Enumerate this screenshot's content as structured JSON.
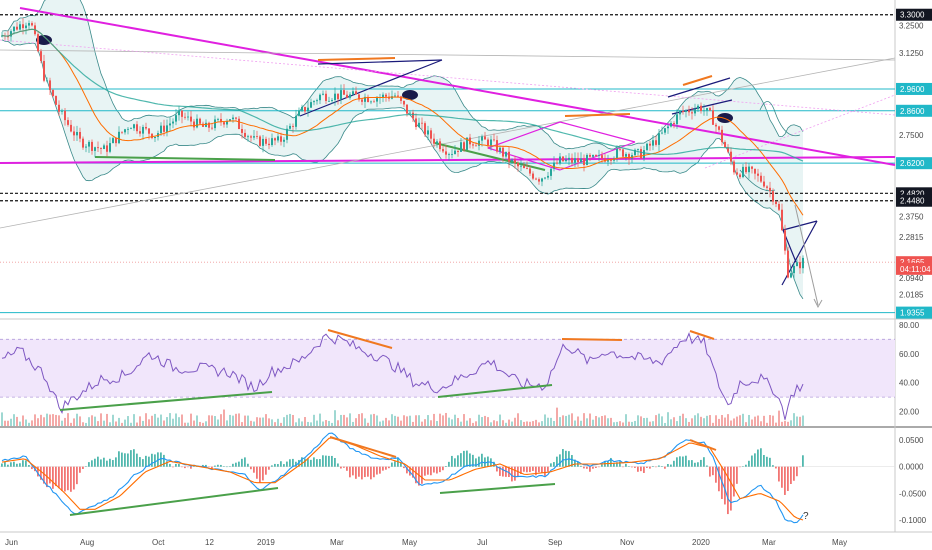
{
  "colors": {
    "up": "#26a69a",
    "down": "#ef5350",
    "magenta": "#e020e0",
    "cyan": "#20b8c8",
    "trend_navy": "#1a1a7a",
    "orange": "#f07820",
    "green": "#4aa04a",
    "rsi": "#7e57c2",
    "macd": "#2196f3",
    "signal": "#ff6d00",
    "band": "#e8f4f4",
    "rsi_band": "#f1e6fb"
  },
  "chart_data": [
    {
      "type": "candlestick",
      "panel": "price",
      "x_axis_labels": [
        "Jun",
        "Aug",
        "Oct",
        "12",
        "2019",
        "Mar",
        "May",
        "Jul",
        "Sep",
        "Nov",
        "2020",
        "Mar",
        "May"
      ],
      "y_axis_labels": [
        "3.2500",
        "3.1250",
        "2.7500",
        "2.3750",
        "2.2815",
        "2.0940",
        "2.0185"
      ],
      "ylim": [
        1.92,
        3.34
      ],
      "price_tags": [
        {
          "label": "3.3000",
          "value": 3.3,
          "style": "dark"
        },
        {
          "label": "2.9600",
          "value": 2.96,
          "style": "cyan"
        },
        {
          "label": "2.8600",
          "value": 2.86,
          "style": "cyan"
        },
        {
          "label": "2.6200",
          "value": 2.62,
          "style": "cyan"
        },
        {
          "label": "2.4820",
          "value": 2.482,
          "style": "dark"
        },
        {
          "label": "2.4480",
          "value": 2.448,
          "style": "dark"
        },
        {
          "label": "2.1665",
          "value": 2.1665,
          "style": "red"
        },
        {
          "label": "04:11:04",
          "value": 2.136,
          "style": "red"
        },
        {
          "label": "1.9355",
          "value": 1.9355,
          "style": "cyan"
        }
      ],
      "horizontal_levels": [
        3.3,
        2.96,
        2.86,
        2.62,
        2.482,
        2.448,
        1.9355
      ],
      "close_path": [
        [
          0,
          3.2
        ],
        [
          30,
          3.28
        ],
        [
          45,
          3.0
        ],
        [
          60,
          2.85
        ],
        [
          80,
          2.72
        ],
        [
          105,
          2.68
        ],
        [
          130,
          2.8
        ],
        [
          155,
          2.75
        ],
        [
          180,
          2.84
        ],
        [
          205,
          2.78
        ],
        [
          230,
          2.83
        ],
        [
          255,
          2.72
        ],
        [
          280,
          2.72
        ],
        [
          300,
          2.85
        ],
        [
          320,
          2.93
        ],
        [
          345,
          2.93
        ],
        [
          370,
          2.92
        ],
        [
          395,
          2.93
        ],
        [
          410,
          2.84
        ],
        [
          430,
          2.74
        ],
        [
          450,
          2.67
        ],
        [
          470,
          2.72
        ],
        [
          490,
          2.72
        ],
        [
          515,
          2.61
        ],
        [
          540,
          2.55
        ],
        [
          560,
          2.63
        ],
        [
          580,
          2.63
        ],
        [
          600,
          2.64
        ],
        [
          620,
          2.67
        ],
        [
          640,
          2.66
        ],
        [
          660,
          2.74
        ],
        [
          680,
          2.85
        ],
        [
          700,
          2.88
        ],
        [
          712,
          2.83
        ],
        [
          720,
          2.75
        ],
        [
          735,
          2.58
        ],
        [
          750,
          2.58
        ],
        [
          765,
          2.53
        ],
        [
          778,
          2.43
        ],
        [
          788,
          2.12
        ],
        [
          795,
          2.14
        ],
        [
          803,
          2.17
        ]
      ]
    },
    {
      "type": "line",
      "panel": "rsi",
      "y_axis_labels": [
        "80.00",
        "60.00",
        "40.00",
        "20.00"
      ],
      "ylim": [
        10,
        82
      ],
      "band": [
        30,
        70
      ],
      "rsi_path": [
        [
          0,
          55
        ],
        [
          20,
          62
        ],
        [
          45,
          45
        ],
        [
          60,
          22
        ],
        [
          75,
          30
        ],
        [
          100,
          42
        ],
        [
          125,
          45
        ],
        [
          150,
          60
        ],
        [
          175,
          50
        ],
        [
          200,
          50
        ],
        [
          230,
          47
        ],
        [
          255,
          36
        ],
        [
          270,
          47
        ],
        [
          300,
          55
        ],
        [
          325,
          72
        ],
        [
          340,
          70
        ],
        [
          360,
          63
        ],
        [
          380,
          58
        ],
        [
          400,
          49
        ],
        [
          415,
          40
        ],
        [
          440,
          36
        ],
        [
          470,
          47
        ],
        [
          490,
          55
        ],
        [
          520,
          39
        ],
        [
          545,
          38
        ],
        [
          565,
          67
        ],
        [
          590,
          54
        ],
        [
          605,
          62
        ],
        [
          630,
          58
        ],
        [
          660,
          54
        ],
        [
          685,
          72
        ],
        [
          705,
          67
        ],
        [
          715,
          45
        ],
        [
          728,
          24
        ],
        [
          740,
          40
        ],
        [
          760,
          43
        ],
        [
          775,
          35
        ],
        [
          785,
          18
        ],
        [
          795,
          36
        ],
        [
          803,
          38
        ]
      ]
    },
    {
      "type": "line",
      "panel": "macd",
      "y_axis_labels": [
        "0.0500",
        "0.0000",
        "-0.0500",
        "-0.1000"
      ],
      "ylim": [
        -0.115,
        0.065
      ],
      "macd_path": [
        [
          0,
          0.01
        ],
        [
          25,
          0.02
        ],
        [
          45,
          -0.03
        ],
        [
          60,
          -0.06
        ],
        [
          75,
          -0.09
        ],
        [
          90,
          -0.075
        ],
        [
          110,
          -0.06
        ],
        [
          135,
          -0.015
        ],
        [
          160,
          0.015
        ],
        [
          185,
          0.005
        ],
        [
          215,
          -0.005
        ],
        [
          245,
          -0.015
        ],
        [
          260,
          -0.045
        ],
        [
          280,
          -0.02
        ],
        [
          310,
          0.025
        ],
        [
          330,
          0.065
        ],
        [
          350,
          0.035
        ],
        [
          375,
          0.015
        ],
        [
          400,
          0.015
        ],
        [
          420,
          -0.035
        ],
        [
          440,
          -0.03
        ],
        [
          465,
          0.0
        ],
        [
          490,
          0.01
        ],
        [
          515,
          -0.02
        ],
        [
          545,
          -0.018
        ],
        [
          565,
          0.015
        ],
        [
          590,
          0.002
        ],
        [
          610,
          0.012
        ],
        [
          640,
          0.005
        ],
        [
          665,
          0.02
        ],
        [
          685,
          0.05
        ],
        [
          705,
          0.045
        ],
        [
          715,
          0.01
        ],
        [
          730,
          -0.07
        ],
        [
          745,
          -0.055
        ],
        [
          760,
          -0.035
        ],
        [
          775,
          -0.06
        ],
        [
          785,
          -0.1
        ],
        [
          797,
          -0.105
        ],
        [
          803,
          -0.09
        ]
      ],
      "signal_path": [
        [
          0,
          0.008
        ],
        [
          25,
          0.015
        ],
        [
          45,
          -0.015
        ],
        [
          65,
          -0.05
        ],
        [
          80,
          -0.08
        ],
        [
          95,
          -0.08
        ],
        [
          120,
          -0.055
        ],
        [
          145,
          -0.01
        ],
        [
          170,
          0.01
        ],
        [
          200,
          0.0
        ],
        [
          230,
          -0.01
        ],
        [
          255,
          -0.03
        ],
        [
          275,
          -0.03
        ],
        [
          305,
          0.01
        ],
        [
          330,
          0.055
        ],
        [
          355,
          0.04
        ],
        [
          380,
          0.02
        ],
        [
          405,
          0.005
        ],
        [
          425,
          -0.025
        ],
        [
          450,
          -0.025
        ],
        [
          475,
          -0.005
        ],
        [
          500,
          0.005
        ],
        [
          525,
          -0.015
        ],
        [
          550,
          -0.01
        ],
        [
          575,
          0.005
        ],
        [
          600,
          0.005
        ],
        [
          630,
          0.008
        ],
        [
          660,
          0.015
        ],
        [
          690,
          0.045
        ],
        [
          710,
          0.035
        ],
        [
          725,
          -0.01
        ],
        [
          740,
          -0.06
        ],
        [
          760,
          -0.05
        ],
        [
          780,
          -0.065
        ],
        [
          795,
          -0.095
        ],
        [
          803,
          -0.1
        ]
      ],
      "annotation": "?"
    }
  ]
}
